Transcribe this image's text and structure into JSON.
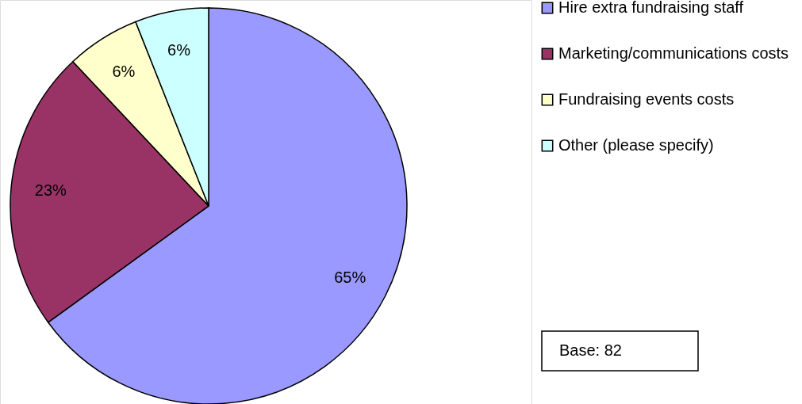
{
  "chart_data": {
    "type": "pie",
    "categories": [
      "Hire extra fundraising staff",
      "Marketing/communications costs",
      "Fundraising events costs",
      "Other (please specify)"
    ],
    "values": [
      65,
      23,
      6,
      6
    ],
    "value_labels": [
      "65%",
      "23%",
      "6%",
      "6%"
    ],
    "colors": [
      "#9999ff",
      "#993366",
      "#ffffcc",
      "#ccffff"
    ],
    "legend": "right",
    "annotations": [
      "Base: 82"
    ]
  }
}
